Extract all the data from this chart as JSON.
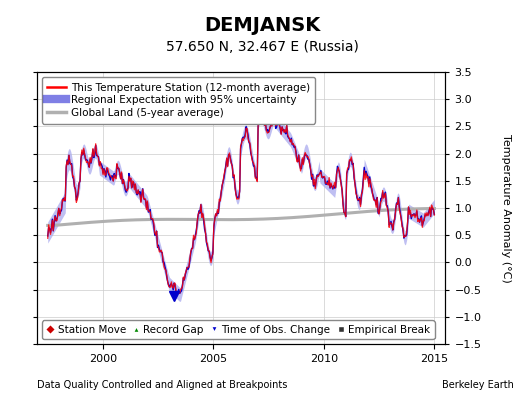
{
  "title": "DEMJANSK",
  "subtitle": "57.650 N, 32.467 E (Russia)",
  "ylabel": "Temperature Anomaly (°C)",
  "xlabel_left": "Data Quality Controlled and Aligned at Breakpoints",
  "xlabel_right": "Berkeley Earth",
  "ylim": [
    -1.5,
    3.5
  ],
  "xlim": [
    1997.0,
    2015.5
  ],
  "yticks": [
    -1.5,
    -1.0,
    -0.5,
    0.0,
    0.5,
    1.0,
    1.5,
    2.0,
    2.5,
    3.0,
    3.5
  ],
  "xticks": [
    2000,
    2005,
    2010,
    2015
  ],
  "legend1_items": [
    "This Temperature Station (12-month average)",
    "Regional Expectation with 95% uncertainty",
    "Global Land (5-year average)"
  ],
  "legend2_items": [
    "Station Move",
    "Record Gap",
    "Time of Obs. Change",
    "Empirical Break"
  ],
  "colors": {
    "station_line": "#FF0000",
    "regional_line": "#0000CC",
    "regional_fill": "#AAAAEE",
    "global_line": "#B0B0B0",
    "background": "#FFFFFF",
    "grid": "#CCCCCC"
  },
  "blue_triangle_x": 2003.2,
  "blue_triangle_y": -0.62,
  "title_fontsize": 14,
  "subtitle_fontsize": 10,
  "tick_fontsize": 8,
  "legend_fontsize": 7.5
}
